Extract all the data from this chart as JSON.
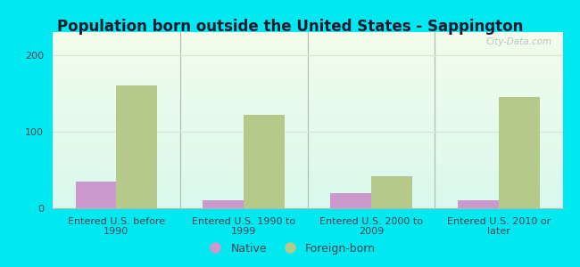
{
  "title": "Population born outside the United States - Sappington",
  "categories": [
    "Entered U.S. before\n1990",
    "Entered U.S. 1990 to\n1999",
    "Entered U.S. 2000 to\n2009",
    "Entered U.S. 2010 or\nlater"
  ],
  "native_values": [
    35,
    10,
    20,
    10
  ],
  "foreign_values": [
    160,
    122,
    42,
    145
  ],
  "native_color": "#cc99cc",
  "foreign_color": "#b5c98a",
  "background_color": "#00e8f0",
  "ylim": [
    0,
    230
  ],
  "yticks": [
    0,
    100,
    200
  ],
  "bar_width": 0.32,
  "title_fontsize": 12,
  "tick_fontsize": 8,
  "legend_fontsize": 9,
  "watermark_text": "City-Data.com",
  "title_color": "#1a1a2e",
  "tick_color": "#444455",
  "separator_color": "#b0b8b0",
  "grid_color": "#d8e8d0"
}
